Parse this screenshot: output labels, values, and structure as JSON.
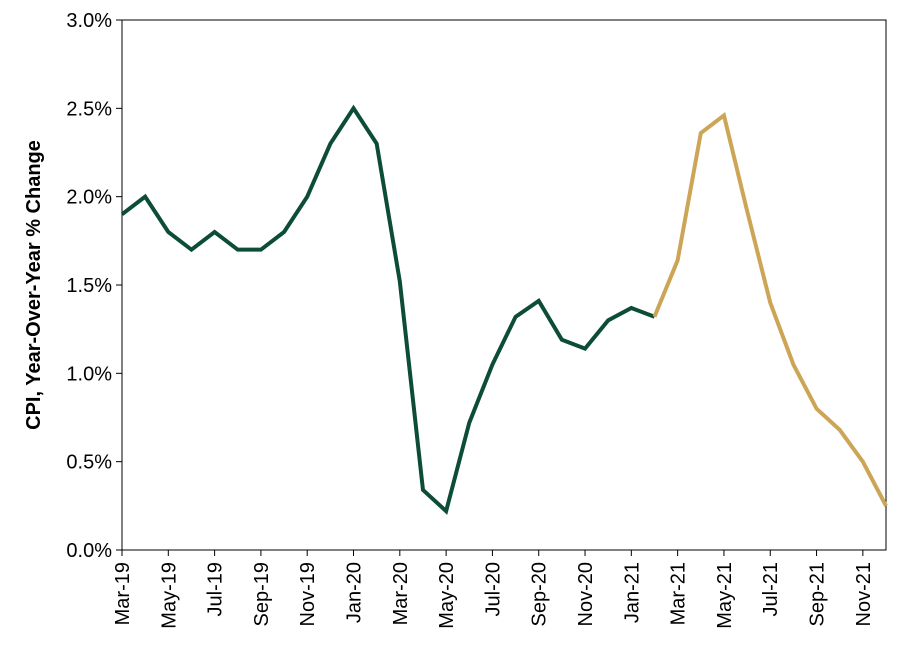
{
  "chart_data": {
    "type": "line",
    "ylabel": "CPI, Year-Over-Year % Change",
    "ylim": [
      0,
      3.0
    ],
    "y_ticks": [
      0.0,
      0.5,
      1.0,
      1.5,
      2.0,
      2.5,
      3.0
    ],
    "y_tick_labels": [
      "0.0%",
      "0.5%",
      "1.0%",
      "1.5%",
      "2.0%",
      "2.5%",
      "3.0%"
    ],
    "x_tick_labels": [
      "Mar-19",
      "May-19",
      "Jul-19",
      "Sep-19",
      "Nov-19",
      "Jan-20",
      "Mar-20",
      "May-20",
      "Jul-20",
      "Sep-20",
      "Nov-20",
      "Jan-21",
      "Mar-21",
      "May-21",
      "Jul-21",
      "Sep-21",
      "Nov-21"
    ],
    "grid": false,
    "x": [
      "Mar-19",
      "Apr-19",
      "May-19",
      "Jun-19",
      "Jul-19",
      "Aug-19",
      "Sep-19",
      "Oct-19",
      "Nov-19",
      "Dec-19",
      "Jan-20",
      "Feb-20",
      "Mar-20",
      "Apr-20",
      "May-20",
      "Jun-20",
      "Jul-20",
      "Aug-20",
      "Sep-20",
      "Oct-20",
      "Nov-20",
      "Dec-20",
      "Jan-21",
      "Feb-21",
      "Mar-21",
      "Apr-21",
      "May-21",
      "Jun-21",
      "Jul-21",
      "Aug-21",
      "Sep-21",
      "Oct-21",
      "Nov-21",
      "Dec-21"
    ],
    "series": [
      {
        "color": "#0d4d37",
        "points": [
          [
            "Mar-19",
            1.9
          ],
          [
            "Apr-19",
            2.0
          ],
          [
            "May-19",
            1.8
          ],
          [
            "Jun-19",
            1.7
          ],
          [
            "Jul-19",
            1.8
          ],
          [
            "Aug-19",
            1.7
          ],
          [
            "Sep-19",
            1.7
          ],
          [
            "Oct-19",
            1.8
          ],
          [
            "Nov-19",
            2.0
          ],
          [
            "Dec-19",
            2.3
          ],
          [
            "Jan-20",
            2.5
          ],
          [
            "Feb-20",
            2.3
          ],
          [
            "Mar-20",
            1.52
          ],
          [
            "Apr-20",
            0.34
          ],
          [
            "May-20",
            0.22
          ],
          [
            "Jun-20",
            0.72
          ],
          [
            "Jul-20",
            1.05
          ],
          [
            "Aug-20",
            1.32
          ],
          [
            "Sep-20",
            1.41
          ],
          [
            "Oct-20",
            1.19
          ],
          [
            "Nov-20",
            1.14
          ],
          [
            "Dec-20",
            1.3
          ],
          [
            "Jan-21",
            1.37
          ],
          [
            "Feb-21",
            1.32
          ]
        ]
      },
      {
        "color": "#cca556",
        "points": [
          [
            "Feb-21",
            1.32
          ],
          [
            "Mar-21",
            1.64
          ],
          [
            "Apr-21",
            2.36
          ],
          [
            "May-21",
            2.46
          ],
          [
            "Jun-21",
            1.92
          ],
          [
            "Jul-21",
            1.4
          ],
          [
            "Aug-21",
            1.05
          ],
          [
            "Sep-21",
            0.8
          ],
          [
            "Oct-21",
            0.68
          ],
          [
            "Nov-21",
            0.5
          ],
          [
            "Dec-21",
            0.25
          ]
        ]
      }
    ]
  }
}
